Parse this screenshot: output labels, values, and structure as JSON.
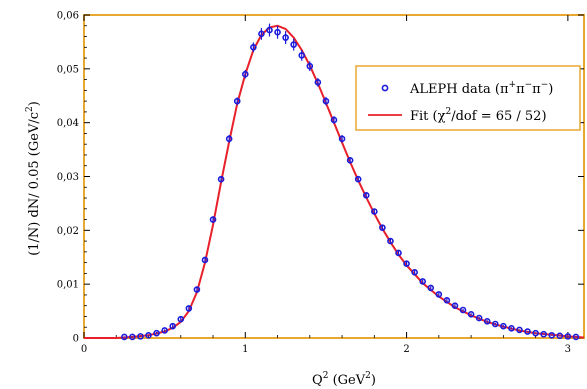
{
  "chart_data": {
    "type": "scatter",
    "xlabel_main": "Q",
    "xlabel_sup": "2",
    "xlabel_unit_open": " (GeV",
    "xlabel_unit_sup": "2",
    "xlabel_unit_close": ")",
    "ylabel_main": "(1/N) dN/ 0.05 (GeV/c",
    "ylabel_sup": "2",
    "ylabel_close": ")",
    "xlim": [
      0,
      3.1
    ],
    "ylim": [
      0,
      0.06
    ],
    "x_ticks": [
      {
        "v": 0,
        "label": "0"
      },
      {
        "v": 1,
        "label": "1"
      },
      {
        "v": 2,
        "label": "2"
      },
      {
        "v": 3,
        "label": "3"
      }
    ],
    "y_ticks": [
      {
        "v": 0,
        "label": "0"
      },
      {
        "v": 0.01,
        "label": "0,01"
      },
      {
        "v": 0.02,
        "label": "0,02"
      },
      {
        "v": 0.03,
        "label": "0,03"
      },
      {
        "v": 0.04,
        "label": "0,04"
      },
      {
        "v": 0.05,
        "label": "0,05"
      },
      {
        "v": 0.06,
        "label": "0,06"
      }
    ],
    "frame_color": "#e8a830",
    "series": [
      {
        "name": "ALEPH data (π⁺π⁻π⁻)",
        "kind": "points",
        "color": "#1a1adc",
        "x": [
          0.25,
          0.3,
          0.35,
          0.4,
          0.45,
          0.5,
          0.55,
          0.6,
          0.65,
          0.7,
          0.75,
          0.8,
          0.85,
          0.9,
          0.95,
          1.0,
          1.05,
          1.1,
          1.15,
          1.2,
          1.25,
          1.3,
          1.35,
          1.4,
          1.45,
          1.5,
          1.55,
          1.6,
          1.65,
          1.7,
          1.75,
          1.8,
          1.85,
          1.9,
          1.95,
          2.0,
          2.05,
          2.1,
          2.15,
          2.2,
          2.25,
          2.3,
          2.35,
          2.4,
          2.45,
          2.5,
          2.55,
          2.6,
          2.65,
          2.7,
          2.75,
          2.8,
          2.85,
          2.9,
          2.95,
          3.0,
          3.05
        ],
        "y": [
          0.0002,
          0.0002,
          0.0003,
          0.0005,
          0.0009,
          0.0014,
          0.0022,
          0.0035,
          0.0055,
          0.009,
          0.0145,
          0.022,
          0.0295,
          0.037,
          0.044,
          0.049,
          0.054,
          0.0565,
          0.0572,
          0.0568,
          0.0558,
          0.0545,
          0.0525,
          0.0505,
          0.0475,
          0.044,
          0.0405,
          0.037,
          0.033,
          0.0295,
          0.0265,
          0.0235,
          0.0205,
          0.018,
          0.0158,
          0.0138,
          0.0122,
          0.0105,
          0.0093,
          0.0081,
          0.007,
          0.006,
          0.0052,
          0.0044,
          0.0037,
          0.0031,
          0.0026,
          0.0022,
          0.0018,
          0.0015,
          0.0012,
          0.0009,
          0.0007,
          0.0005,
          0.0004,
          0.0003,
          0.0002
        ],
        "err": [
          0.0001,
          0.0001,
          0.0001,
          0.0001,
          0.0002,
          0.0002,
          0.0003,
          0.0003,
          0.0004,
          0.0004,
          0.0005,
          0.0006,
          0.0006,
          0.0007,
          0.0007,
          0.0008,
          0.0009,
          0.0011,
          0.0012,
          0.0012,
          0.0012,
          0.0011,
          0.001,
          0.0009,
          0.0008,
          0.0008,
          0.0007,
          0.0007,
          0.0006,
          0.0006,
          0.0005,
          0.0005,
          0.0005,
          0.0004,
          0.0004,
          0.0004,
          0.0004,
          0.0003,
          0.0003,
          0.0003,
          0.0003,
          0.0003,
          0.0002,
          0.0002,
          0.0002,
          0.0002,
          0.0002,
          0.0002,
          0.0002,
          0.0001,
          0.0001,
          0.0001,
          0.0001,
          0.0001,
          0.0001,
          0.0001,
          0.0001
        ]
      },
      {
        "name": "Fit (χ²/dof = 65 / 52)",
        "kind": "line",
        "color": "#e8202a",
        "x": [
          0,
          0.2,
          0.3,
          0.4,
          0.5,
          0.55,
          0.6,
          0.65,
          0.7,
          0.75,
          0.8,
          0.85,
          0.9,
          0.95,
          1.0,
          1.05,
          1.1,
          1.15,
          1.2,
          1.25,
          1.3,
          1.35,
          1.4,
          1.45,
          1.5,
          1.55,
          1.6,
          1.65,
          1.7,
          1.75,
          1.8,
          1.85,
          1.9,
          1.95,
          2.0,
          2.1,
          2.2,
          2.3,
          2.4,
          2.5,
          2.6,
          2.7,
          2.8,
          2.9,
          3.0,
          3.1
        ],
        "y": [
          0,
          0,
          0.0002,
          0.0005,
          0.0012,
          0.0019,
          0.003,
          0.005,
          0.0085,
          0.014,
          0.021,
          0.029,
          0.0365,
          0.0435,
          0.049,
          0.0535,
          0.0563,
          0.0577,
          0.058,
          0.0574,
          0.0558,
          0.0535,
          0.0506,
          0.0473,
          0.0437,
          0.04,
          0.0363,
          0.0327,
          0.0293,
          0.0261,
          0.0231,
          0.0203,
          0.0178,
          0.0155,
          0.0135,
          0.0102,
          0.0077,
          0.0057,
          0.0042,
          0.003,
          0.0021,
          0.0014,
          0.0009,
          0.0006,
          0.0003,
          0.0001
        ]
      }
    ],
    "legend": {
      "position": "right",
      "entries": [
        {
          "prefix": "ALEPH data (π",
          "sup1": "+",
          "mid1": "π",
          "sup2": "−",
          "mid2": "π",
          "sup3": "−",
          "suffix": ")"
        },
        {
          "prefix": "Fit (χ",
          "sup1": "2",
          "suffix": "/dof = 65 / 52)"
        }
      ]
    }
  }
}
